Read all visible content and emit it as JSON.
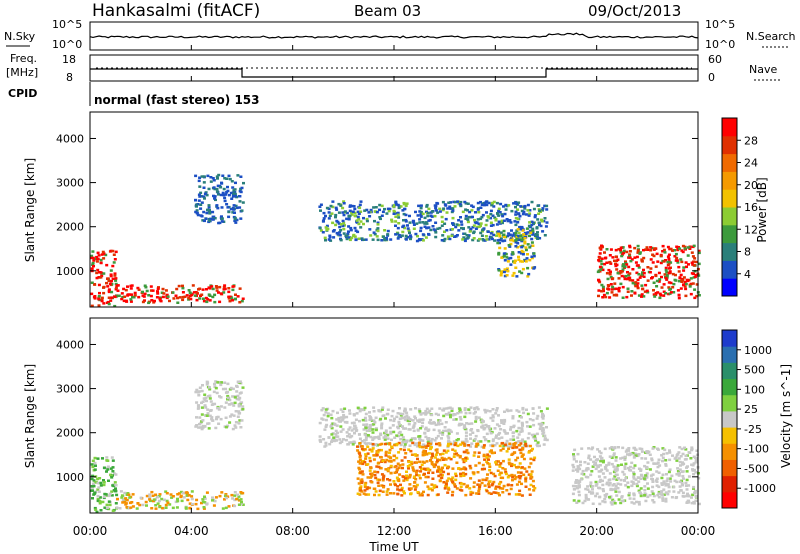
{
  "header": {
    "title": "Hankasalmi (fitACF)",
    "beam": "Beam 03",
    "date": "09/Oct/2013"
  },
  "top_panels": {
    "nsky": {
      "label": "N.Sky",
      "yticks_left": [
        "10^5",
        "10^0"
      ],
      "yticks_right": [
        "10^5",
        "10^0"
      ],
      "right_label": "N.Search"
    },
    "freq": {
      "label_line1": "Freq.",
      "label_line2": "[MHz]",
      "yticks_left": [
        "18",
        "8"
      ],
      "yticks_right": [
        "60",
        "0"
      ],
      "right_label": "Nave"
    },
    "cpid": {
      "label": "CPID",
      "text": "normal (fast stereo) 153"
    }
  },
  "chart_data": [
    {
      "type": "heatmap",
      "name": "power-panel",
      "xlabel": "",
      "ylabel": "Slant Range [km]",
      "xlim": [
        0,
        24
      ],
      "ylim": [
        180,
        4600
      ],
      "yticks": [
        1000,
        2000,
        3000,
        4000
      ],
      "colorbar": {
        "label": "Power [dB]",
        "ticks": [
          "4",
          "8",
          "12",
          "16",
          "20",
          "24",
          "28"
        ],
        "colors": [
          "#0000ff",
          "#1c4fc4",
          "#2a7f7a",
          "#3c9a3c",
          "#8ccc33",
          "#f2c200",
          "#f59a00",
          "#f06a00",
          "#e03000",
          "#ff0000"
        ]
      },
      "regions": [
        {
          "x": [
            0.0,
            1.0
          ],
          "y": [
            180,
            1500
          ],
          "intensity": "high",
          "note": "near-range strong echoes"
        },
        {
          "x": [
            1.0,
            6.0
          ],
          "y": [
            300,
            700
          ],
          "intensity": "high"
        },
        {
          "x": [
            4.1,
            6.0
          ],
          "y": [
            2100,
            3200
          ],
          "intensity": "low",
          "note": "sloping band"
        },
        {
          "x": [
            9.0,
            18.0
          ],
          "y": [
            1700,
            2600
          ],
          "intensity": "low-medium",
          "note": "long band"
        },
        {
          "x": [
            16.0,
            17.5
          ],
          "y": [
            900,
            2000
          ],
          "intensity": "medium"
        },
        {
          "x": [
            20.0,
            24.0
          ],
          "y": [
            400,
            1600
          ],
          "intensity": "high",
          "note": "evening echoes"
        }
      ]
    },
    {
      "type": "heatmap",
      "name": "velocity-panel",
      "xlabel": "Time UT",
      "ylabel": "Slant Range [km]",
      "xlim": [
        0,
        24
      ],
      "ylim": [
        180,
        4600
      ],
      "yticks": [
        1000,
        2000,
        3000,
        4000
      ],
      "xticks": [
        "00:00",
        "04:00",
        "08:00",
        "12:00",
        "16:00",
        "20:00",
        "00:00"
      ],
      "colorbar": {
        "label": "Velocity [m s^-1]",
        "ticks": [
          "1000",
          "500",
          "100",
          "25",
          "-25",
          "-100",
          "-500",
          "-1000"
        ],
        "colors": [
          "#1e3ccc",
          "#2a6fb0",
          "#2a8f6a",
          "#3aa83a",
          "#7fd040",
          "#c8c8c8",
          "#f5c000",
          "#f59000",
          "#f06000",
          "#e02000",
          "#ff0000"
        ]
      },
      "regions": [
        {
          "x": [
            0.0,
            1.0
          ],
          "y": [
            180,
            1500
          ],
          "velocity": "positive"
        },
        {
          "x": [
            1.0,
            6.0
          ],
          "y": [
            300,
            700
          ],
          "velocity": "mixed"
        },
        {
          "x": [
            4.1,
            6.0
          ],
          "y": [
            2100,
            3200
          ],
          "velocity": "near-zero"
        },
        {
          "x": [
            9.0,
            18.0
          ],
          "y": [
            1700,
            2600
          ],
          "velocity": "near-zero"
        },
        {
          "x": [
            10.5,
            17.5
          ],
          "y": [
            600,
            1800
          ],
          "velocity": "negative"
        },
        {
          "x": [
            19.0,
            24.0
          ],
          "y": [
            400,
            1700
          ],
          "velocity": "near-zero"
        }
      ]
    }
  ],
  "timeseries": {
    "xticks_hours": [
      0,
      4,
      8,
      12,
      16,
      20,
      24
    ],
    "freq_steps": [
      {
        "t0": 0,
        "t1": 6,
        "level": "high"
      },
      {
        "t0": 6,
        "t1": 18,
        "level": "low"
      },
      {
        "t0": 18,
        "t1": 24,
        "level": "high"
      }
    ]
  }
}
